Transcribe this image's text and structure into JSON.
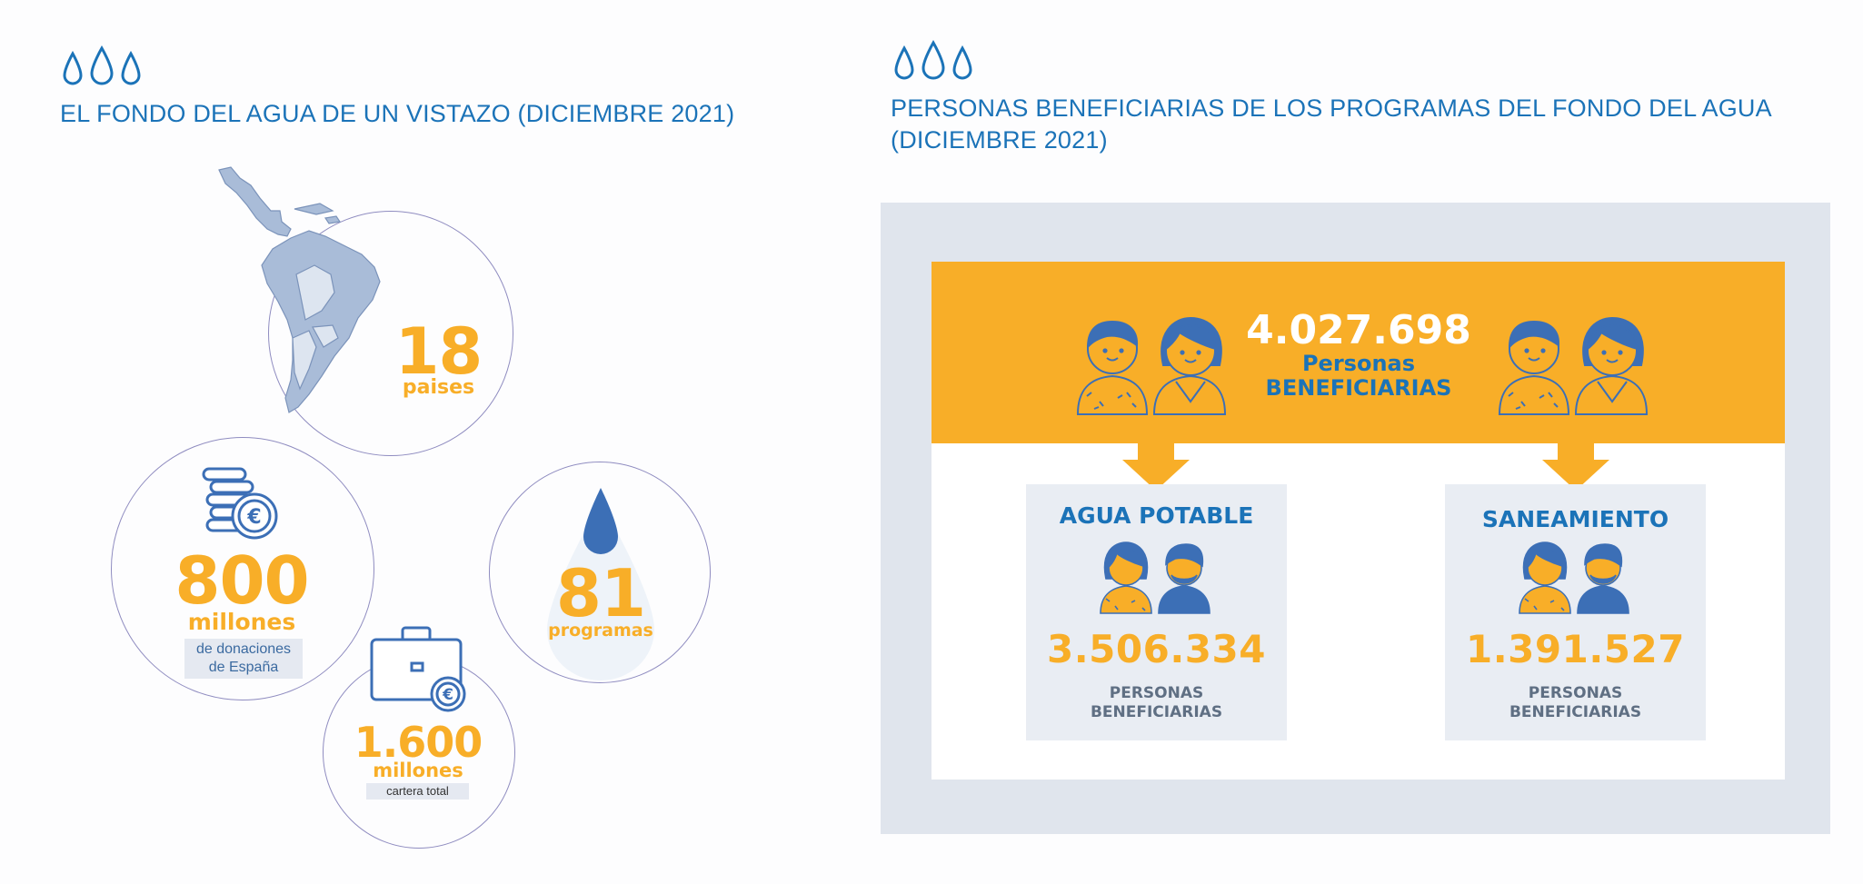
{
  "left": {
    "title": "EL FONDO DEL AGUA DE UN VISTAZO (DICIEMBRE 2021)",
    "countries": {
      "value": "18",
      "label": "paises"
    },
    "donations": {
      "value": "800",
      "unit": "millones",
      "note_line1": "de donaciones",
      "note_line2": "de España"
    },
    "programs": {
      "value": "81",
      "label": "programas"
    },
    "portfolio": {
      "value": "1.600",
      "unit": "millones",
      "note": "cartera total"
    }
  },
  "right": {
    "title_line1": "PERSONAS BENEFICIARIAS DE LOS PROGRAMAS DEL FONDO DEL AGUA",
    "title_line2": "(DICIEMBRE 2021)",
    "total": {
      "value": "4.027.698",
      "line1": "Personas",
      "line2": "BENEFICIARIAS"
    },
    "water": {
      "title": "AGUA POTABLE",
      "value": "3.506.334",
      "line1": "PERSONAS",
      "line2": "BENEFICIARIAS"
    },
    "sanitation": {
      "title": "SANEAMIENTO",
      "value": "1.391.527",
      "line1": "PERSONAS",
      "line2": "BENEFICIARIAS"
    }
  },
  "colors": {
    "blue": "#1b73b8",
    "orange": "#f8ae28",
    "panel": "#e0e5ed",
    "icon_blue": "#3c6fb6"
  },
  "icons": [
    "water-drops-icon",
    "latin-america-map-icon",
    "euro-coins-icon",
    "water-drop-icon",
    "briefcase-euro-icon",
    "man-icon",
    "woman-icon",
    "arrow-down-icon"
  ]
}
